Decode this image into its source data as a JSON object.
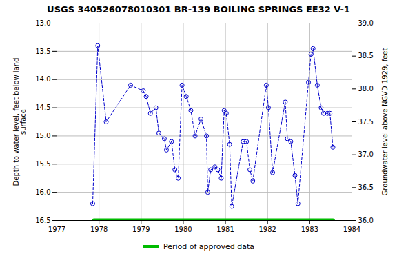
{
  "chart_data": {
    "type": "line",
    "title": "USGS 340526078010301 BR-139 BOILING SPRINGS EE32 V-1",
    "ylabel": "Depth to water level, feet below land\nsurface",
    "y2label": "Groundwater level above NGVD 1929, feet",
    "x": [
      1977.85,
      1977.97,
      1978.17,
      1978.75,
      1979.05,
      1979.12,
      1979.22,
      1979.35,
      1979.42,
      1979.55,
      1979.6,
      1979.72,
      1979.8,
      1979.88,
      1979.97,
      1980.07,
      1980.18,
      1980.28,
      1980.42,
      1980.55,
      1980.58,
      1980.65,
      1980.75,
      1980.82,
      1980.9,
      1980.97,
      1981.02,
      1981.1,
      1981.15,
      1981.42,
      1981.5,
      1981.58,
      1981.65,
      1981.97,
      1982.02,
      1982.12,
      1982.42,
      1982.47,
      1982.55,
      1982.65,
      1982.72,
      1982.97,
      1983.03,
      1983.08,
      1983.18,
      1983.27,
      1983.33,
      1983.42,
      1983.48,
      1983.55
    ],
    "series": [
      {
        "type": "line",
        "color": "#0000cc",
        "line_style": "dashed",
        "marker": "circle",
        "values": [
          16.2,
          13.4,
          14.75,
          14.1,
          14.2,
          14.3,
          14.6,
          14.5,
          14.95,
          15.05,
          15.25,
          15.1,
          15.6,
          15.75,
          14.1,
          14.3,
          14.55,
          15.0,
          14.7,
          15.0,
          16.0,
          15.6,
          15.55,
          15.6,
          15.75,
          14.55,
          14.6,
          15.15,
          16.25,
          15.1,
          15.1,
          15.6,
          15.8,
          14.1,
          14.5,
          15.65,
          14.4,
          15.05,
          15.1,
          15.7,
          16.2,
          14.05,
          13.55,
          13.45,
          14.1,
          14.5,
          14.6,
          14.6,
          14.6,
          15.2
        ]
      },
      {
        "type": "segment",
        "name": "Period of approved data",
        "color": "#00bb00",
        "x": [
          1977.88,
          1983.55
        ],
        "values": [
          16.5,
          16.5
        ]
      }
    ],
    "xlim": [
      1977,
      1984
    ],
    "xticks": [
      1977,
      1978,
      1979,
      1980,
      1981,
      1982,
      1983,
      1984
    ],
    "ylim": [
      16.5,
      13.0
    ],
    "yticks": [
      {
        "value": 13.0,
        "label": "13.0"
      },
      {
        "value": 13.5,
        "label": "13.5"
      },
      {
        "value": 14.0,
        "label": "14.0"
      },
      {
        "value": 14.5,
        "label": "14.5"
      },
      {
        "value": 15.0,
        "label": "15.0"
      },
      {
        "value": 15.5,
        "label": "15.5"
      },
      {
        "value": 16.0,
        "label": "16.0"
      },
      {
        "value": 16.5,
        "label": "16.5"
      }
    ],
    "y2lim": [
      36.0,
      39.0
    ],
    "y2ticks": [
      {
        "value": 39.0,
        "label": "39.0"
      },
      {
        "value": 38.5,
        "label": "38.5"
      },
      {
        "value": 38.0,
        "label": "38.0"
      },
      {
        "value": 37.5,
        "label": "37.5"
      },
      {
        "value": 37.0,
        "label": "37.0"
      },
      {
        "value": 36.5,
        "label": "36.5"
      },
      {
        "value": 36.0,
        "label": "36.0"
      }
    ],
    "grid": true,
    "legend": "bottom"
  }
}
